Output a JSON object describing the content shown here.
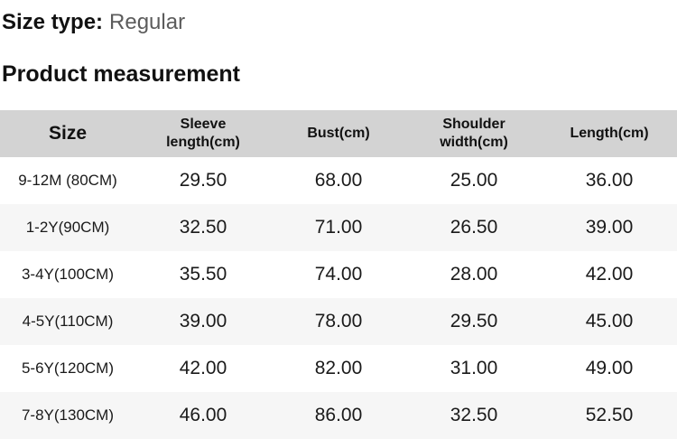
{
  "header": {
    "size_type_label": "Size type:",
    "size_type_value": "Regular",
    "section_title": "Product measurement"
  },
  "table": {
    "columns": [
      "Size",
      "Sleeve length(cm)",
      "Bust(cm)",
      "Shoulder width(cm)",
      "Length(cm)"
    ],
    "rows": [
      {
        "size": "9-12M (80CM)",
        "values": [
          "29.50",
          "68.00",
          "25.00",
          "36.00"
        ]
      },
      {
        "size": "1-2Y(90CM)",
        "values": [
          "32.50",
          "71.00",
          "26.50",
          "39.00"
        ]
      },
      {
        "size": "3-4Y(100CM)",
        "values": [
          "35.50",
          "74.00",
          "28.00",
          "42.00"
        ]
      },
      {
        "size": "4-5Y(110CM)",
        "values": [
          "39.00",
          "78.00",
          "29.50",
          "45.00"
        ]
      },
      {
        "size": "5-6Y(120CM)",
        "values": [
          "42.00",
          "82.00",
          "31.00",
          "49.00"
        ]
      },
      {
        "size": "7-8Y(130CM)",
        "values": [
          "46.00",
          "86.00",
          "32.50",
          "52.50"
        ]
      }
    ]
  },
  "colors": {
    "header_row_bg": "#d3d3d3",
    "alt_row_bg": "#f6f6f6",
    "heading_text": "#111111",
    "muted_text": "#5c5c5c",
    "body_text": "#1a1a1a"
  }
}
